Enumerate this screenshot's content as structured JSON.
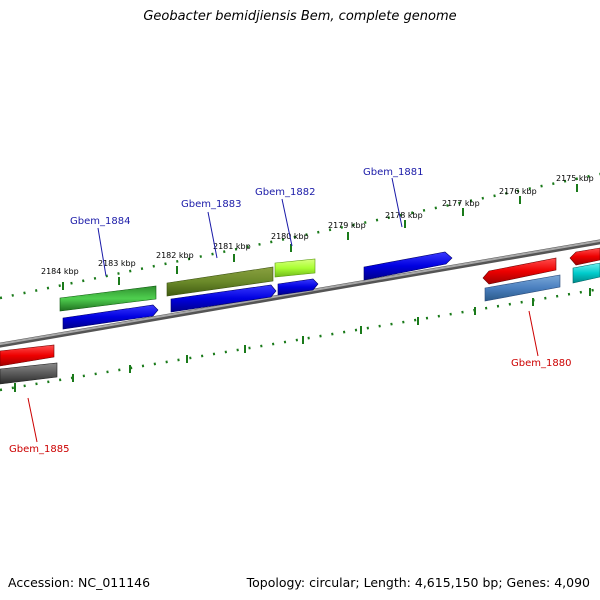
{
  "title": "Geobacter bemidjiensis Bem, complete genome",
  "footer": {
    "accession": "Accession: NC_011146",
    "summary": "Topology: circular; Length: 4,615,150 bp; Genes: 4,090"
  },
  "scale": {
    "ticks": [
      "2184 kbp",
      "2183 kbp",
      "2182 kbp",
      "2181 kbp",
      "2180 kbp",
      "2179 kbp",
      "2178 kbp",
      "2177 kbp",
      "2176 kbp",
      "2175 kbp"
    ]
  },
  "genes": [
    {
      "name": "Gbem_1884",
      "strand": "forward",
      "color": "#0000dd"
    },
    {
      "name": "Gbem_1883",
      "strand": "forward",
      "color": "#0000dd"
    },
    {
      "name": "Gbem_1882",
      "strand": "forward",
      "color": "#0000dd"
    },
    {
      "name": "Gbem_1881",
      "strand": "forward",
      "color": "#0000dd"
    },
    {
      "name": "Gbem_1880",
      "strand": "reverse",
      "color": "#ee0000"
    },
    {
      "name": "Gbem_1885",
      "strand": "reverse",
      "color": "#ee0000"
    }
  ],
  "colors": {
    "forward_gene_label": "#1a1aa8",
    "reverse_gene_label": "#cc0000",
    "tick": "#1a7a1a",
    "backbone": "#808080"
  }
}
